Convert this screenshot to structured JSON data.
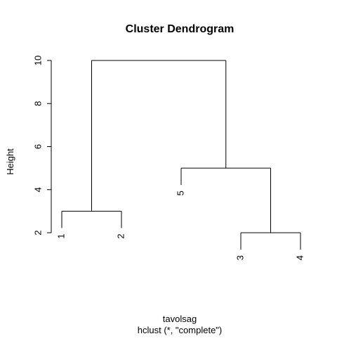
{
  "chart_data": {
    "type": "dendrogram",
    "title": "Cluster Dendrogram",
    "y_label": "Height",
    "x_label": "tavolsag",
    "subtitle": "hclust (*, \"complete\")",
    "ylim": [
      2,
      10
    ],
    "yticks": [
      2,
      4,
      6,
      8,
      10
    ],
    "tree": {
      "height": 10,
      "children": [
        {
          "height": 3,
          "children": [
            {
              "label": "1"
            },
            {
              "label": "2"
            }
          ]
        },
        {
          "height": 5,
          "children": [
            {
              "label": "5"
            },
            {
              "height": 2,
              "children": [
                {
                  "label": "3"
                },
                {
                  "label": "4"
                }
              ]
            }
          ]
        }
      ]
    }
  }
}
